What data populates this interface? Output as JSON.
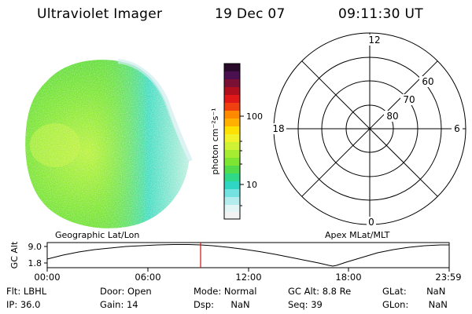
{
  "header": {
    "instrument": "Ultraviolet Imager",
    "date": "19 Dec 07",
    "time": "09:11:30 UT"
  },
  "colorbar": {
    "unit_label": "photon cm⁻²s⁻¹",
    "tick_labels": [
      "100",
      "10"
    ]
  },
  "polar_plot": {
    "mlt_labels": {
      "top": "12",
      "left": "18",
      "right": "6",
      "bottom": "0"
    },
    "lat_labels": [
      "60",
      "70",
      "80"
    ],
    "caption": "Apex MLat/MLT"
  },
  "image_caption": "Geographic Lat/Lon",
  "timeline": {
    "ylabel": "GC Alt",
    "y_ticks": [
      "9.0",
      "1.8"
    ],
    "x_ticks": [
      "00:00",
      "06:00",
      "12:00",
      "18:00",
      "23:59"
    ],
    "marker_time": "09:11:30"
  },
  "info": [
    [
      {
        "label": "Flt:",
        "value": "LBHL"
      },
      {
        "label": "Door:",
        "value": "Open"
      },
      {
        "label": "Mode:",
        "value": "Normal"
      },
      {
        "label": "GC Alt:",
        "value": "8.8 Re"
      },
      {
        "label": "GLat:",
        "value": "NaN"
      }
    ],
    [
      {
        "label": "IP:",
        "value": "36.0"
      },
      {
        "label": "Gain:",
        "value": "14"
      },
      {
        "label": "Dsp:",
        "value": "NaN"
      },
      {
        "label": "Seq:",
        "value": "39"
      },
      {
        "label": "GLon:",
        "value": "NaN"
      }
    ]
  ],
  "colors": {
    "image_green": "#7ee632",
    "image_cyan": "#3edcd0",
    "marker": "#d01010"
  }
}
